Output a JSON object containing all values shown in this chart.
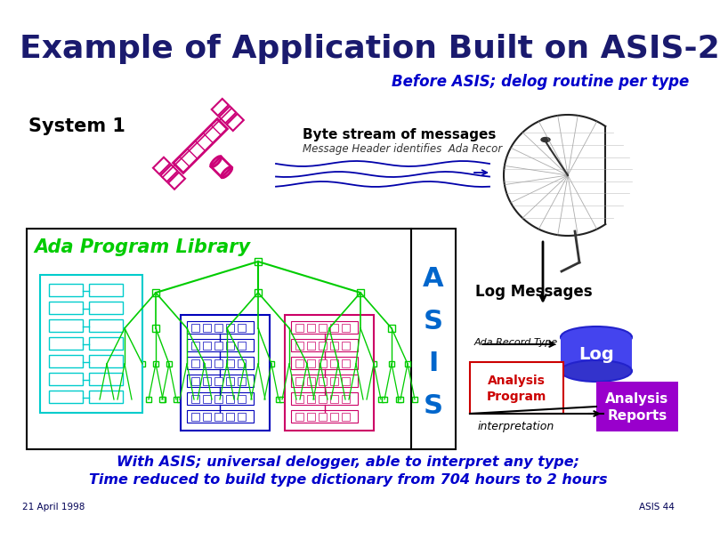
{
  "title": "Example of Application Built on ASIS-2",
  "subtitle": "Before ASIS; delog routine per type",
  "system1_label": "System 1",
  "ada_library_label": "Ada Program Library",
  "asis_label": "A\nS\nI\nS",
  "log_messages_label": "Log Messages",
  "ada_record_label": "Ada Record Type",
  "log_label": "Log",
  "analysis_program_label": "Analysis\nProgram",
  "analysis_reports_label": "Analysis\nReports",
  "interpretation_label": "interpretation",
  "byte_stream_label": "Byte stream of messages",
  "message_header_label": "Message Header identifies  Ada Recor",
  "footer_left": "21 April 1998",
  "footer_right": "ASIS 44",
  "conclusion_line1": "With ASIS; universal delogger, able to interpret any type;",
  "conclusion_line2": "Time reduced to build type dictionary from 704 hours to 2 hours",
  "bg_color": "#ffffff",
  "title_color": "#1a1a6e",
  "subtitle_color": "#0000cc",
  "system1_color": "#000000",
  "ada_library_color": "#00cc00",
  "asis_color": "#0066cc",
  "log_messages_color": "#000000",
  "conclusion_color": "#0000cc",
  "satellite_pink": "#cc0077",
  "log_box_color": "#4444dd",
  "analysis_reports_color": "#9900cc",
  "analysis_program_color": "#cc0000",
  "arrow_color": "#000000",
  "byte_stream_arrow_color": "#0000aa",
  "green_tree": "#00cc00",
  "cyan_box": "#00cccc",
  "blue_box": "#0000bb",
  "pink_box": "#cc0066"
}
